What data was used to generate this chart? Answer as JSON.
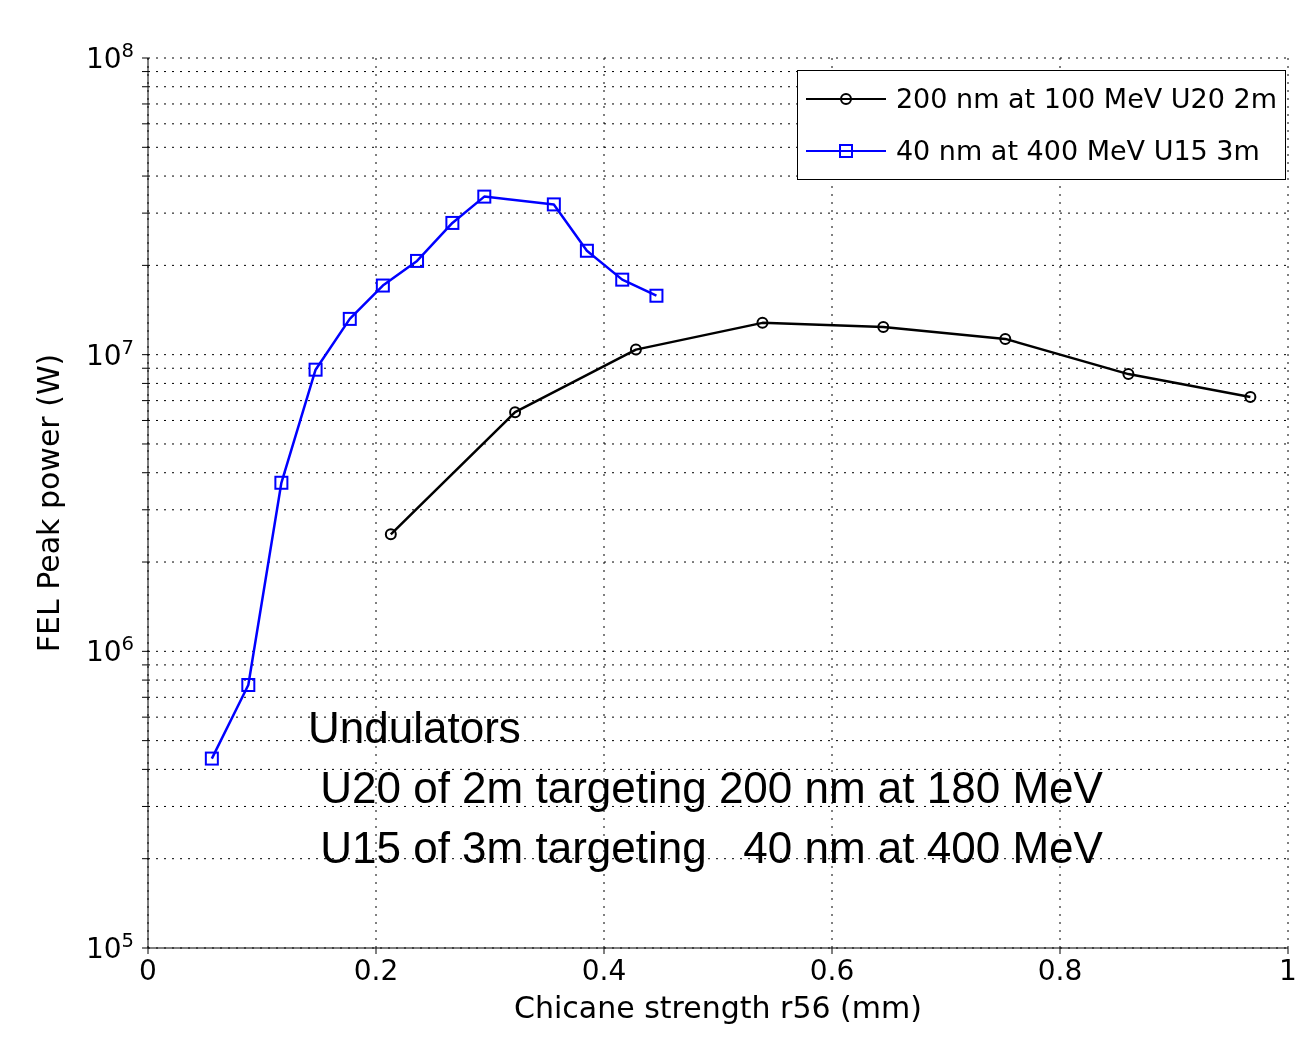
{
  "chart_data": {
    "type": "line",
    "xlabel": "Chicane strength r56 (mm)",
    "ylabel": "FEL Peak power (W)",
    "log": "y",
    "grid": true,
    "legend": "top right",
    "line_style": "solid",
    "xlim": [
      0,
      1
    ],
    "xticks": [
      0,
      0.2,
      0.4,
      0.6,
      0.8,
      1
    ],
    "ylim": [
      100000,
      100000000
    ],
    "yticks": [
      {
        "value": 100000,
        "label": "10$^{5}$"
      },
      {
        "value": 200000,
        "label": null
      },
      {
        "value": 300000,
        "label": null
      },
      {
        "value": 400000,
        "label": null
      },
      {
        "value": 500000,
        "label": null
      },
      {
        "value": 600000,
        "label": null
      },
      {
        "value": 700000,
        "label": null
      },
      {
        "value": 800000,
        "label": null
      },
      {
        "value": 900000,
        "label": null
      },
      {
        "value": 1000000,
        "label": "10$^{6}$"
      },
      {
        "value": 2000000,
        "label": null
      },
      {
        "value": 3000000,
        "label": null
      },
      {
        "value": 4000000,
        "label": null
      },
      {
        "value": 5000000,
        "label": null
      },
      {
        "value": 6000000,
        "label": null
      },
      {
        "value": 7000000,
        "label": null
      },
      {
        "value": 8000000,
        "label": null
      },
      {
        "value": 9000000,
        "label": null
      },
      {
        "value": 10000000,
        "label": "10$^{7}$"
      },
      {
        "value": 20000000,
        "label": null
      },
      {
        "value": 30000000,
        "label": null
      },
      {
        "value": 40000000,
        "label": null
      },
      {
        "value": 50000000,
        "label": null
      },
      {
        "value": 60000000,
        "label": null
      },
      {
        "value": 70000000,
        "label": null
      },
      {
        "value": 80000000,
        "label": null
      },
      {
        "value": 90000000,
        "label": null
      },
      {
        "value": 100000000,
        "label": "10$^{8}$"
      }
    ],
    "series": [
      {
        "name": "200 nm at 100 MeV U20 2m",
        "color": "#000000",
        "marker": "circle",
        "x": [
          0.213,
          0.322,
          0.428,
          0.539,
          0.645,
          0.752,
          0.86,
          0.967
        ],
        "values": [
          2480000,
          6400000,
          10400000,
          12800000,
          12400000,
          11300000,
          8600000,
          7200000
        ]
      },
      {
        "name": "40 nm at 400 MeV U15 3m",
        "color": "#0000ff",
        "marker": "square",
        "x": [
          0.056,
          0.088,
          0.117,
          0.147,
          0.177,
          0.206,
          0.236,
          0.267,
          0.295,
          0.356,
          0.385,
          0.416,
          0.446
        ],
        "values": [
          435000,
          770000,
          3700000,
          8900000,
          13200000,
          17100000,
          20700000,
          27800000,
          34100000,
          32100000,
          22400000,
          17900000,
          15800000
        ]
      }
    ],
    "annotations": [
      "Undulators",
      " U20 of 2m targeting 200 nm at 180 MeV",
      " U15 of 3m targeting   40 nm at 400 MeV"
    ]
  }
}
